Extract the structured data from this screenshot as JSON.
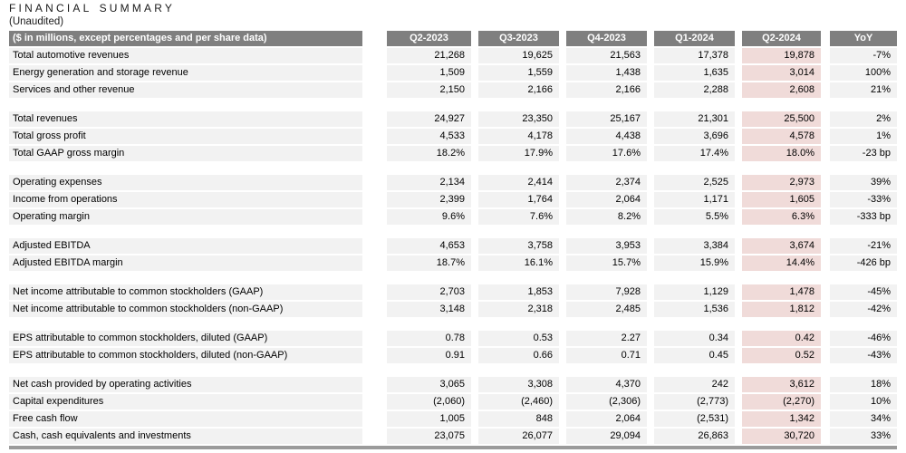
{
  "page": {
    "title": "FINANCIAL SUMMARY",
    "subtitle": "(Unaudited)"
  },
  "colors": {
    "header_bg": "#7f7f7f",
    "header_text": "#ffffff",
    "row_bg": "#f2f2f2",
    "highlight_bg": "#f0dbd9",
    "bottom_strip": "#9b9b9b"
  },
  "table": {
    "header": {
      "label": "($ in millions, except percentages and per share data)",
      "columns": [
        "Q2-2023",
        "Q3-2023",
        "Q4-2023",
        "Q1-2024",
        "Q2-2024",
        "YoY"
      ],
      "highlight_column": "Q2-2024",
      "highlight_column_index": 4
    },
    "sections": [
      {
        "rows": [
          {
            "label": "Total automotive revenues",
            "values": [
              "21,268",
              "19,625",
              "21,563",
              "17,378",
              "19,878",
              "-7%"
            ]
          },
          {
            "label": "Energy generation and storage revenue",
            "values": [
              "1,509",
              "1,559",
              "1,438",
              "1,635",
              "3,014",
              "100%"
            ]
          },
          {
            "label": "Services and other revenue",
            "values": [
              "2,150",
              "2,166",
              "2,166",
              "2,288",
              "2,608",
              "21%"
            ]
          }
        ]
      },
      {
        "rows": [
          {
            "label": "Total revenues",
            "values": [
              "24,927",
              "23,350",
              "25,167",
              "21,301",
              "25,500",
              "2%"
            ]
          },
          {
            "label": "Total gross profit",
            "values": [
              "4,533",
              "4,178",
              "4,438",
              "3,696",
              "4,578",
              "1%"
            ]
          },
          {
            "label": "Total GAAP gross margin",
            "values": [
              "18.2%",
              "17.9%",
              "17.6%",
              "17.4%",
              "18.0%",
              "-23 bp"
            ]
          }
        ]
      },
      {
        "rows": [
          {
            "label": "Operating expenses",
            "values": [
              "2,134",
              "2,414",
              "2,374",
              "2,525",
              "2,973",
              "39%"
            ]
          },
          {
            "label": "Income from operations",
            "values": [
              "2,399",
              "1,764",
              "2,064",
              "1,171",
              "1,605",
              "-33%"
            ]
          },
          {
            "label": "Operating margin",
            "values": [
              "9.6%",
              "7.6%",
              "8.2%",
              "5.5%",
              "6.3%",
              "-333 bp"
            ]
          }
        ]
      },
      {
        "rows": [
          {
            "label": "Adjusted EBITDA",
            "values": [
              "4,653",
              "3,758",
              "3,953",
              "3,384",
              "3,674",
              "-21%"
            ]
          },
          {
            "label": "Adjusted EBITDA margin",
            "values": [
              "18.7%",
              "16.1%",
              "15.7%",
              "15.9%",
              "14.4%",
              "-426 bp"
            ]
          }
        ]
      },
      {
        "rows": [
          {
            "label": "Net income attributable to common stockholders (GAAP)",
            "values": [
              "2,703",
              "1,853",
              "7,928",
              "1,129",
              "1,478",
              "-45%"
            ]
          },
          {
            "label": "Net income attributable to common stockholders (non-GAAP)",
            "values": [
              "3,148",
              "2,318",
              "2,485",
              "1,536",
              "1,812",
              "-42%"
            ]
          }
        ]
      },
      {
        "rows": [
          {
            "label": "EPS attributable to common stockholders, diluted (GAAP)",
            "values": [
              "0.78",
              "0.53",
              "2.27",
              "0.34",
              "0.42",
              "-46%"
            ]
          },
          {
            "label": "EPS attributable to common stockholders, diluted (non-GAAP)",
            "values": [
              "0.91",
              "0.66",
              "0.71",
              "0.45",
              "0.52",
              "-43%"
            ]
          }
        ]
      },
      {
        "rows": [
          {
            "label": "Net cash provided by operating activities",
            "values": [
              "3,065",
              "3,308",
              "4,370",
              "242",
              "3,612",
              "18%"
            ]
          },
          {
            "label": "Capital expenditures",
            "values": [
              "(2,060)",
              "(2,460)",
              "(2,306)",
              "(2,773)",
              "(2,270)",
              "10%"
            ]
          },
          {
            "label": "Free cash flow",
            "values": [
              "1,005",
              "848",
              "2,064",
              "(2,531)",
              "1,342",
              "34%"
            ]
          },
          {
            "label": "Cash, cash equivalents and investments",
            "values": [
              "23,075",
              "26,077",
              "29,094",
              "26,863",
              "30,720",
              "33%"
            ]
          }
        ]
      }
    ]
  }
}
